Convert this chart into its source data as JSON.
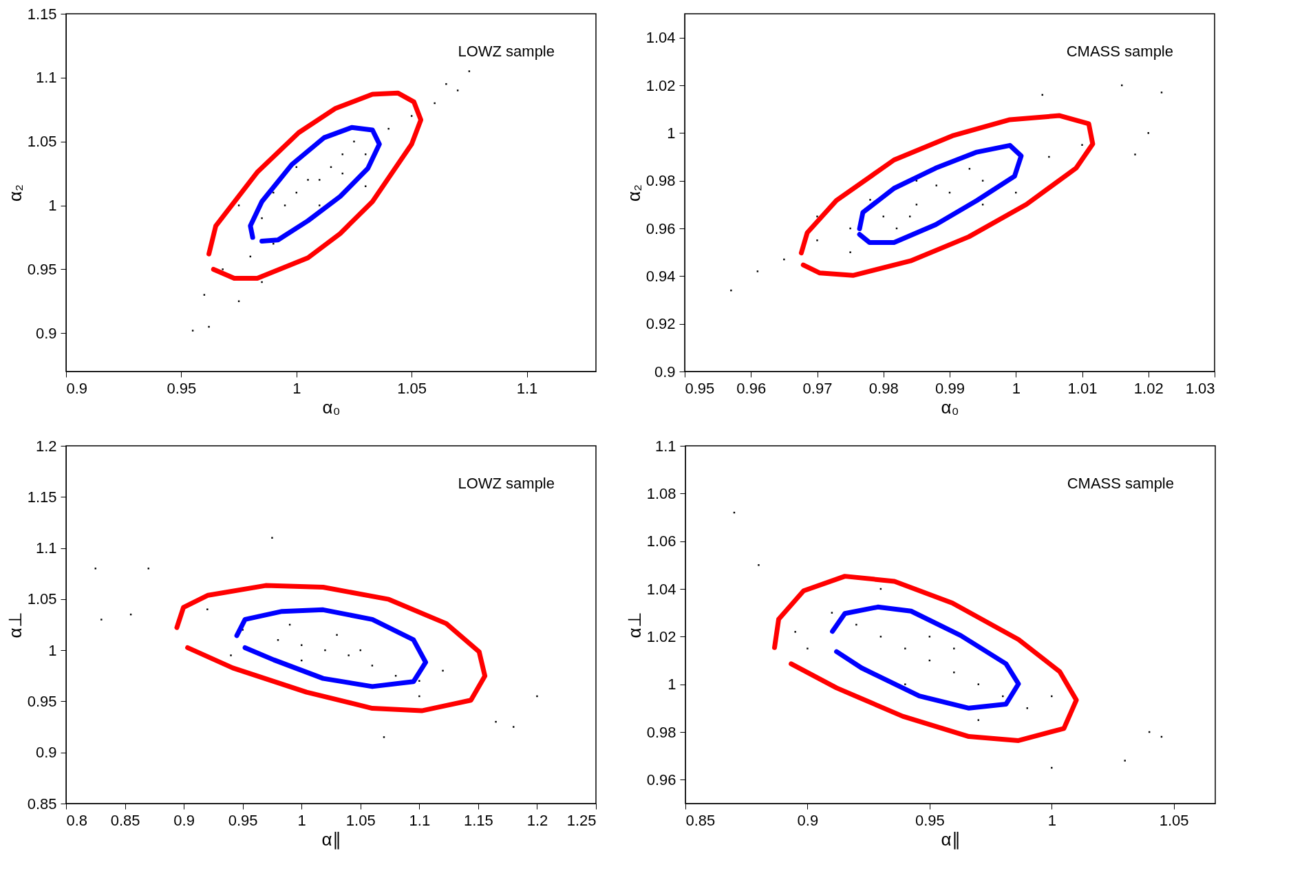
{
  "chart_data": [
    {
      "type": "scatter",
      "xlabel": "α₀",
      "ylabel": "α₂",
      "annotations": [
        "LOWZ sample"
      ],
      "xlim": [
        0.9,
        1.13
      ],
      "ylim": [
        0.87,
        1.15
      ],
      "xticks": [
        0.9,
        0.95,
        1,
        1.05,
        1.1
      ],
      "yticks": [
        0.9,
        0.95,
        1,
        1.05,
        1.1,
        1.15
      ],
      "grid": false,
      "legend": false,
      "series": [
        {
          "color": "#000000",
          "x": [
            0.955,
            0.962,
            0.96,
            0.968,
            0.975,
            0.98,
            0.99,
            0.985,
            0.995,
            1.0,
            1.005,
            1.01,
            1.015,
            1.02,
            1.0,
            0.99,
            1.01,
            1.02,
            1.025,
            1.03,
            1.04,
            1.05,
            1.06,
            1.07,
            1.075,
            1.065,
            1.03,
            0.975,
            0.985
          ],
          "values": [
            0.902,
            0.905,
            0.93,
            0.95,
            0.925,
            0.96,
            0.97,
            0.99,
            1.0,
            1.01,
            1.02,
            1.02,
            1.03,
            1.025,
            1.03,
            1.01,
            1.0,
            1.04,
            1.05,
            1.04,
            1.06,
            1.07,
            1.08,
            1.09,
            1.105,
            1.095,
            1.015,
            1.0,
            0.94
          ]
        },
        {
          "type": "line",
          "color": "#ff0000",
          "x": [
            0.962,
            0.965,
            0.983,
            1.001,
            1.017,
            1.033,
            1.044,
            1.051,
            1.054,
            1.05,
            1.033,
            1.019,
            1.005,
            0.983,
            0.973,
            0.964
          ],
          "values": [
            0.962,
            0.984,
            1.026,
            1.057,
            1.076,
            1.087,
            1.088,
            1.081,
            1.067,
            1.048,
            1.003,
            0.978,
            0.959,
            0.943,
            0.943,
            0.95
          ]
        },
        {
          "type": "line",
          "color": "#0000ff",
          "x": [
            0.981,
            0.98,
            0.985,
            0.998,
            1.012,
            1.024,
            1.033,
            1.036,
            1.031,
            1.019,
            1.005,
            0.992,
            0.985
          ],
          "values": [
            0.975,
            0.984,
            1.003,
            1.032,
            1.053,
            1.061,
            1.059,
            1.048,
            1.029,
            1.007,
            0.988,
            0.973,
            0.972
          ]
        }
      ]
    },
    {
      "type": "scatter",
      "xlabel": "α₀",
      "ylabel": "α₂",
      "annotations": [
        "CMASS sample"
      ],
      "xlim": [
        0.95,
        1.03
      ],
      "ylim": [
        0.9,
        1.05
      ],
      "xticks": [
        0.95,
        0.96,
        0.97,
        0.98,
        0.99,
        1,
        1.01,
        1.02,
        1.03
      ],
      "yticks": [
        0.9,
        0.92,
        0.94,
        0.96,
        0.98,
        1,
        1.02,
        1.04
      ],
      "grid": false,
      "legend": false,
      "series": [
        {
          "color": "#000000",
          "x": [
            0.957,
            0.961,
            0.965,
            1.022,
            1.016,
            1.018,
            1.02,
            1.004,
            0.97,
            0.975,
            0.98,
            0.985,
            0.99,
            0.995,
            1.0,
            0.985,
            0.984,
            0.978,
            1.005,
            0.995,
            0.982,
            1.01,
            0.975,
            0.97,
            0.993,
            0.988
          ],
          "values": [
            0.934,
            0.942,
            0.947,
            1.017,
            1.02,
            0.991,
            1.0,
            1.016,
            0.955,
            0.96,
            0.965,
            0.97,
            0.975,
            0.98,
            0.975,
            0.98,
            0.965,
            0.972,
            0.99,
            0.97,
            0.96,
            0.995,
            0.95,
            0.965,
            0.985,
            0.978
          ]
        },
        {
          "type": "line",
          "color": "#ff0000",
          "x": [
            0.9676,
            0.9685,
            0.9729,
            0.9816,
            0.9904,
            0.9991,
            1.0066,
            1.011,
            1.0116,
            1.0091,
            1.0016,
            0.9929,
            0.9841,
            0.9754,
            0.9704,
            0.9679
          ],
          "values": [
            0.9497,
            0.9582,
            0.9717,
            0.9887,
            0.9988,
            1.0056,
            1.0073,
            1.0039,
            0.9954,
            0.9853,
            0.9701,
            0.9565,
            0.9464,
            0.9403,
            0.9413,
            0.9447
          ]
        },
        {
          "type": "line",
          "color": "#0000ff",
          "x": [
            0.9764,
            0.9769,
            0.9816,
            0.9879,
            0.9941,
            0.9991,
            1.0008,
            0.9998,
            0.9941,
            0.9879,
            0.9816,
            0.9779,
            0.9764
          ],
          "values": [
            0.9599,
            0.9667,
            0.9768,
            0.9853,
            0.992,
            0.9948,
            0.9904,
            0.9819,
            0.9717,
            0.9616,
            0.9541,
            0.9541,
            0.9575
          ]
        }
      ]
    },
    {
      "type": "scatter",
      "xlabel": "α∥",
      "ylabel": "α⊥",
      "annotations": [
        "LOWZ sample"
      ],
      "xlim": [
        0.8,
        1.25
      ],
      "ylim": [
        0.85,
        1.2
      ],
      "xticks": [
        0.8,
        0.85,
        0.9,
        0.95,
        1,
        1.05,
        1.1,
        1.15,
        1.2,
        1.25
      ],
      "yticks": [
        0.85,
        0.9,
        0.95,
        1,
        1.05,
        1.1,
        1.15,
        1.2
      ],
      "grid": false,
      "legend": false,
      "series": [
        {
          "color": "#000000",
          "x": [
            0.825,
            0.83,
            0.87,
            0.855,
            0.975,
            1.2,
            1.18,
            1.165,
            1.07,
            0.92,
            0.95,
            0.98,
            1.0,
            1.02,
            1.04,
            1.06,
            1.08,
            1.1,
            1.0,
            1.03,
            1.05,
            0.99,
            1.1,
            0.94,
            1.12
          ],
          "values": [
            1.08,
            1.03,
            1.08,
            1.035,
            1.11,
            0.955,
            0.925,
            0.93,
            0.915,
            1.04,
            1.02,
            1.01,
            1.005,
            1.0,
            0.995,
            0.985,
            0.975,
            0.97,
            0.99,
            1.015,
            1.0,
            1.025,
            0.955,
            0.995,
            0.98
          ]
        },
        {
          "type": "line",
          "color": "#ff0000",
          "x": [
            0.8941,
            0.8997,
            0.9206,
            0.9695,
            1.0183,
            1.0741,
            1.1229,
            1.1508,
            1.1557,
            1.1438,
            1.102,
            1.0601,
            1.0043,
            0.9416,
            0.9032
          ],
          "values": [
            1.0222,
            1.0419,
            1.0538,
            1.0633,
            1.0617,
            1.0498,
            1.0261,
            0.9985,
            0.9748,
            0.9511,
            0.9408,
            0.9432,
            0.959,
            0.9827,
            1.0025
          ]
        },
        {
          "type": "line",
          "color": "#0000ff",
          "x": [
            0.945,
            0.952,
            0.9834,
            1.0183,
            1.0601,
            1.095,
            1.1054,
            1.095,
            1.0601,
            1.0183,
            0.9764,
            0.952
          ],
          "values": [
            1.0143,
            1.0301,
            1.038,
            1.0396,
            1.0301,
            1.0103,
            0.9882,
            0.9693,
            0.9645,
            0.9724,
            0.9906,
            1.0025
          ]
        }
      ]
    },
    {
      "type": "scatter",
      "xlabel": "α∥",
      "ylabel": "α⊥",
      "annotations": [
        "CMASS sample"
      ],
      "xlim": [
        0.85,
        1.067
      ],
      "ylim": [
        0.95,
        1.1
      ],
      "xticks": [
        0.85,
        0.9,
        0.95,
        1,
        1.05
      ],
      "yticks": [
        0.96,
        0.98,
        1,
        1.02,
        1.04,
        1.06,
        1.08,
        1.1
      ],
      "grid": false,
      "legend": false,
      "series": [
        {
          "color": "#000000",
          "x": [
            0.87,
            0.88,
            1.04,
            1.045,
            1.03,
            1.0,
            0.895,
            0.91,
            0.92,
            0.93,
            0.94,
            0.95,
            0.96,
            0.97,
            0.98,
            0.99,
            0.95,
            0.94,
            0.96,
            0.9,
            1.0,
            0.93,
            0.97
          ],
          "values": [
            1.072,
            1.05,
            0.98,
            0.978,
            0.968,
            0.965,
            1.022,
            1.03,
            1.025,
            1.02,
            1.015,
            1.01,
            1.005,
            1.0,
            0.995,
            0.99,
            1.02,
            1.0,
            1.015,
            1.015,
            0.995,
            1.04,
            0.985
          ]
        },
        {
          "type": "line",
          "color": "#ff0000",
          "x": [
            0.8865,
            0.8882,
            0.8984,
            0.9153,
            0.9356,
            0.9593,
            0.9864,
            1.0033,
            1.0101,
            1.005,
            0.9864,
            0.9661,
            0.939,
            0.9119,
            0.8933
          ],
          "values": [
            1.0154,
            1.0273,
            1.0392,
            1.0453,
            1.0432,
            1.0341,
            1.0188,
            1.0053,
            0.9934,
            0.9815,
            0.9764,
            0.9781,
            0.9866,
            0.9985,
            1.0086
          ]
        },
        {
          "type": "line",
          "color": "#0000ff",
          "x": [
            0.9102,
            0.9153,
            0.9288,
            0.9424,
            0.9627,
            0.9813,
            0.9864,
            0.9813,
            0.9661,
            0.9458,
            0.9221,
            0.9119
          ],
          "values": [
            1.0222,
            1.0297,
            1.0324,
            1.0307,
            1.0205,
            1.0086,
            1.0002,
            0.9917,
            0.99,
            0.9951,
            1.0069,
            1.0137
          ]
        }
      ]
    }
  ]
}
